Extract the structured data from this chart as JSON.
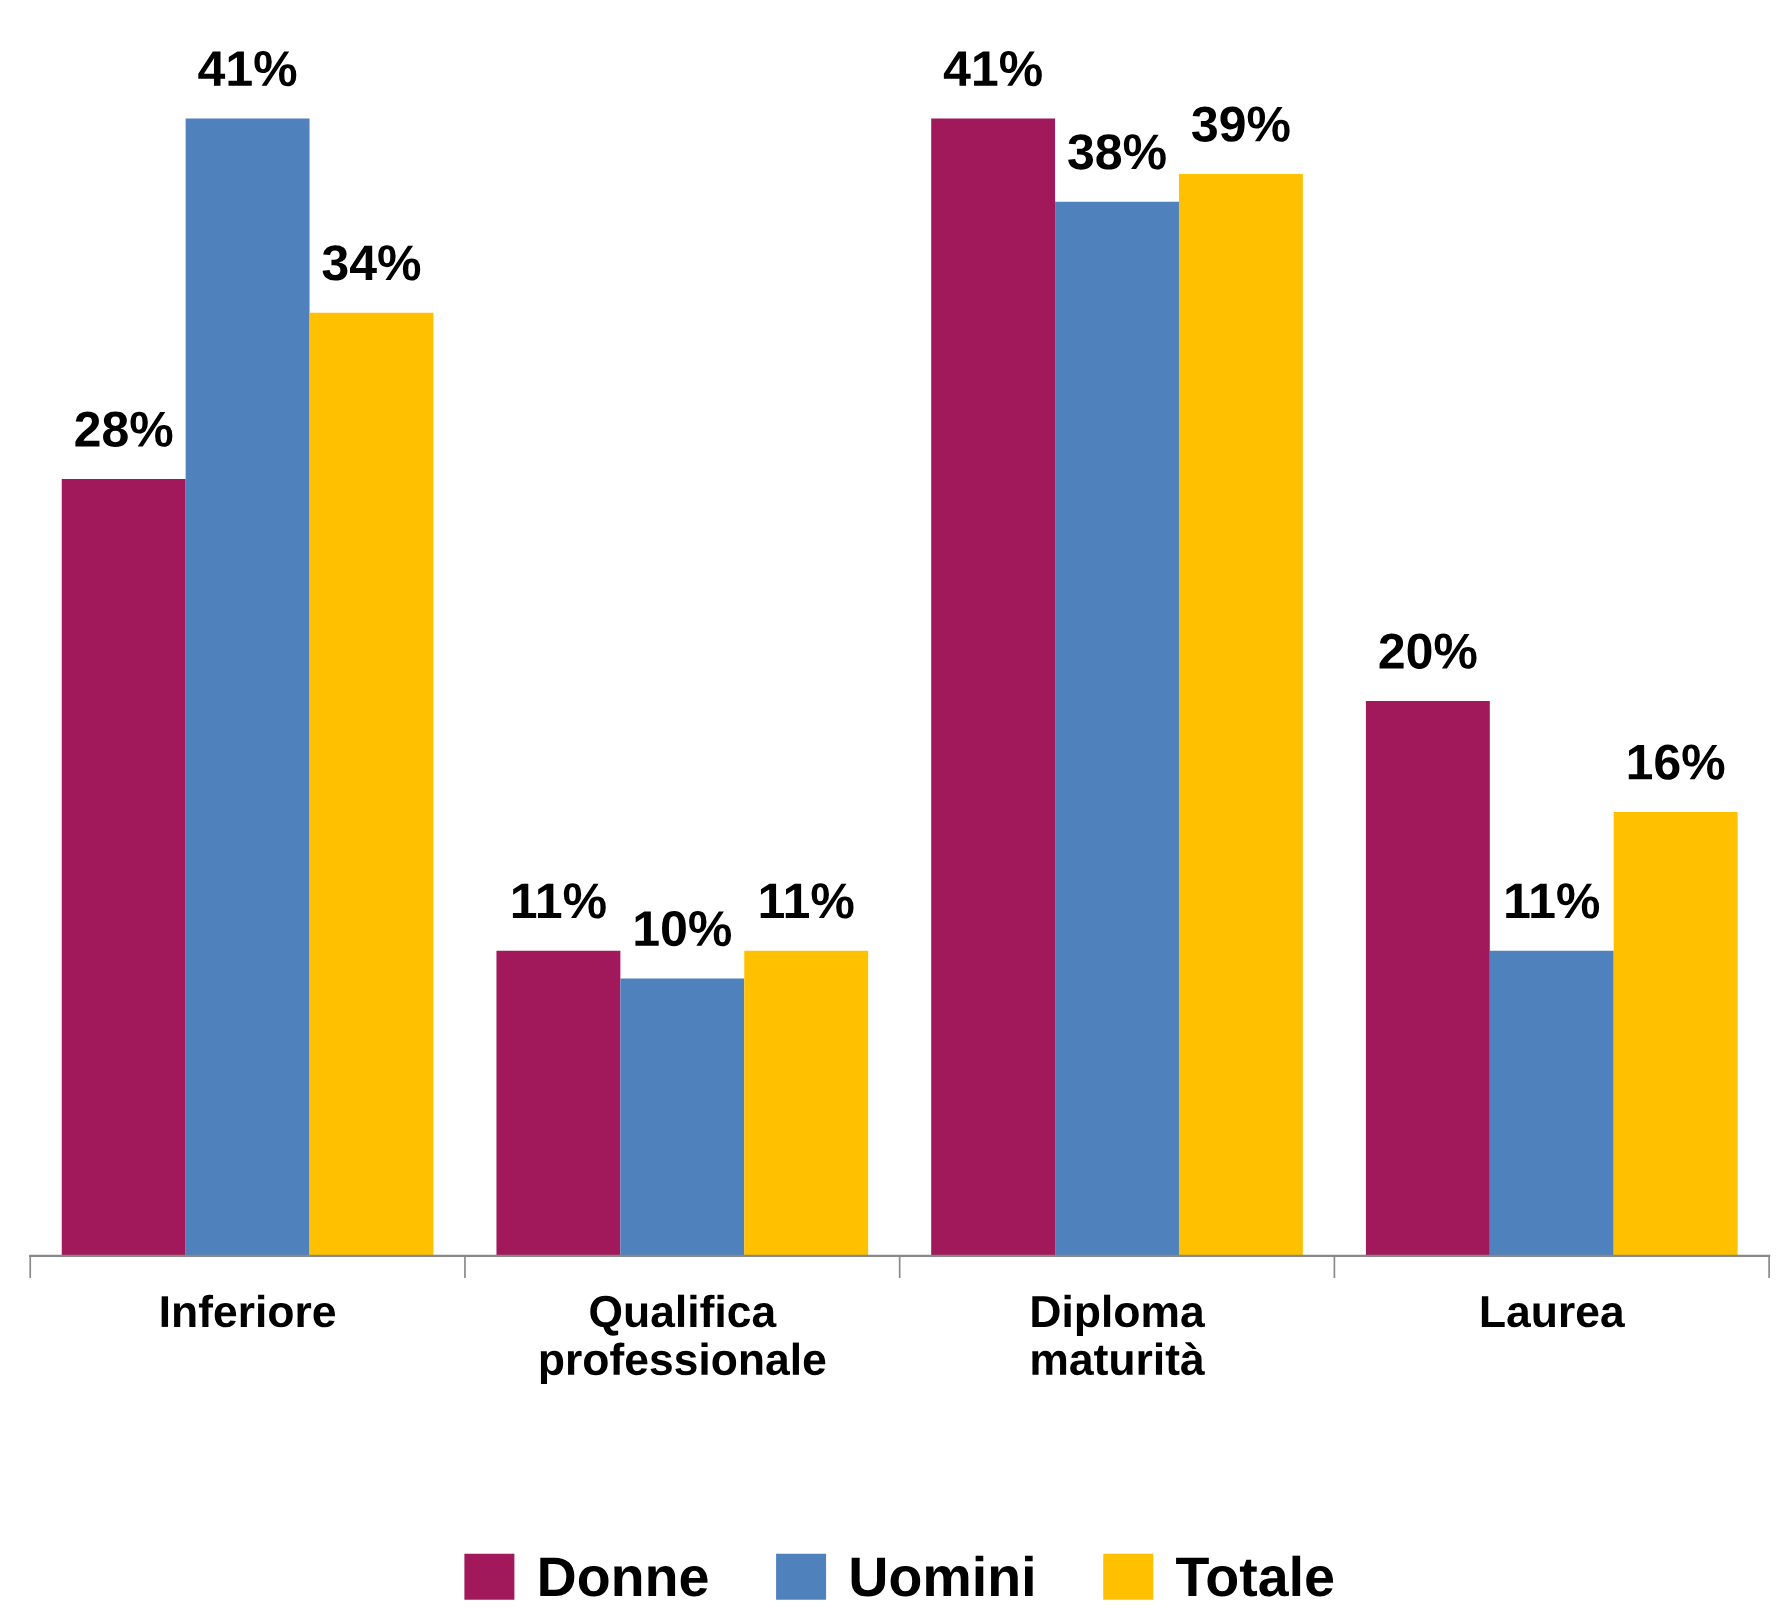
{
  "chart_data": {
    "type": "bar",
    "categories": [
      "Inferiore",
      "Qualifica\nprofessionale",
      "Diploma\nmaturità",
      "Laurea"
    ],
    "series": [
      {
        "name": "Donne",
        "color": "#a2195b",
        "values": [
          28,
          11,
          41,
          20
        ],
        "value_labels": [
          "28%",
          "11%",
          "41%",
          "20%"
        ]
      },
      {
        "name": "Uomini",
        "color": "#4f81bd",
        "values": [
          41,
          10,
          38,
          11
        ],
        "value_labels": [
          "41%",
          "10%",
          "38%",
          "11%"
        ]
      },
      {
        "name": "Totale",
        "color": "#ffc000",
        "values": [
          34,
          11,
          39,
          16
        ],
        "value_labels": [
          "34%",
          "11%",
          "39%",
          "16%"
        ]
      }
    ],
    "legend": "bottom",
    "grid": false,
    "tick_labels": "x"
  }
}
